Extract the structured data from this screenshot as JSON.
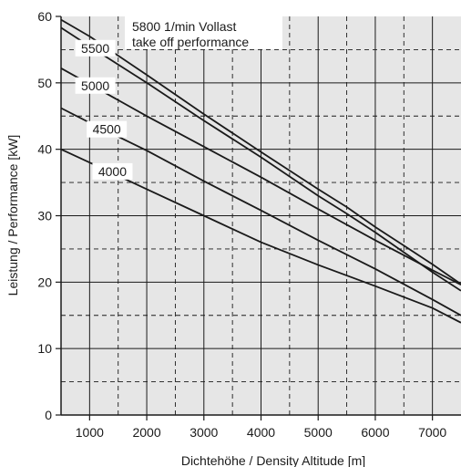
{
  "chart_data": {
    "type": "line",
    "xlabel": "Dichtehöhe / Density Altitude [m]",
    "ylabel": "Leistung / Performance [kW]",
    "xlim": [
      500,
      7500
    ],
    "ylim": [
      0,
      60
    ],
    "x_ticks": [
      1000,
      2000,
      3000,
      4000,
      5000,
      6000,
      7000
    ],
    "y_ticks": [
      0,
      10,
      20,
      30,
      40,
      50,
      60
    ],
    "grid": true,
    "grid_major": "solid",
    "grid_minor": "dashed",
    "background": "#e6e6e6",
    "line_color": "#1a1a1a",
    "annotation_lines": [
      "5800 1/min Vollast",
      "take off performance"
    ],
    "series": [
      {
        "name": "5800",
        "x": [
          500,
          1000,
          2000,
          3000,
          4000,
          5000,
          5500,
          6000,
          6500,
          7000,
          7500
        ],
        "y": [
          59.5,
          57.0,
          51.2,
          45.3,
          39.6,
          34.0,
          31.3,
          28.3,
          25.5,
          22.7,
          19.7
        ]
      },
      {
        "name": "5500",
        "x": [
          500,
          1000,
          2000,
          3000,
          4000,
          5000,
          5500,
          6000,
          6500,
          7000,
          7500
        ],
        "y": [
          58.3,
          55.5,
          50.0,
          44.3,
          38.8,
          33.0,
          30.3,
          27.5,
          24.5,
          21.5,
          18.7
        ]
      },
      {
        "name": "5000",
        "x": [
          500,
          1000,
          2000,
          3000,
          4000,
          5000,
          6000,
          7000,
          7500
        ],
        "y": [
          52.2,
          49.8,
          45.0,
          40.4,
          35.8,
          31.0,
          26.3,
          21.8,
          19.6
        ]
      },
      {
        "name": "4500",
        "x": [
          500,
          1000,
          2000,
          3000,
          4000,
          5000,
          6000,
          7000,
          7500
        ],
        "y": [
          46.2,
          44.0,
          39.8,
          35.2,
          30.8,
          26.3,
          22.0,
          17.4,
          15.0
        ]
      },
      {
        "name": "4000",
        "x": [
          500,
          1000,
          2000,
          3000,
          4000,
          5000,
          6000,
          7000,
          7500
        ],
        "y": [
          40.0,
          38.0,
          34.0,
          30.0,
          26.0,
          22.6,
          19.4,
          16.1,
          13.9
        ]
      }
    ]
  }
}
